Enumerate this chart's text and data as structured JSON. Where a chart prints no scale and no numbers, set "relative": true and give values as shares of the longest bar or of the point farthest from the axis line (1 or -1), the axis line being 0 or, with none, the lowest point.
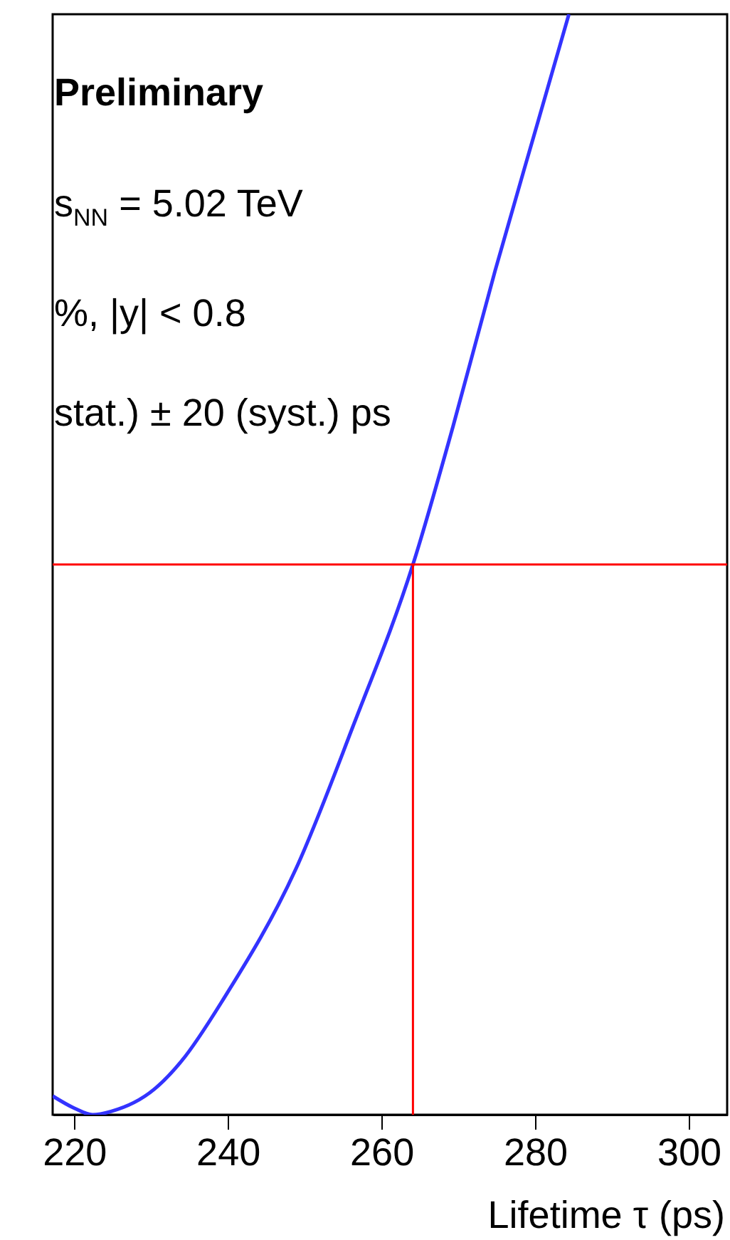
{
  "chart_data": {
    "type": "line",
    "relative": true,
    "xlabel": "Lifetime τ (ps)",
    "x": [
      217.2,
      220,
      222.4,
      224.8,
      230.4,
      234,
      239.6,
      248.9,
      256.3,
      264.1,
      269.3,
      274.8,
      280.4,
      284.4
    ],
    "series": [
      {
        "color": "#3333ff",
        "values": [
          0.017,
          0.006,
          0,
          0.003,
          0.023,
          0.049,
          0.107,
          0.224,
          0.353,
          0.5,
          0.625,
          0.767,
          0.903,
          1
        ]
      }
    ],
    "xlim": [
      217.2,
      305
    ],
    "xticks": [
      220,
      240,
      260,
      280,
      300
    ],
    "ref_lines": [
      {
        "axis": "y",
        "value": 0.5,
        "color": "#ff0000"
      },
      {
        "axis": "x",
        "value": 264.1,
        "color": "#ff0000"
      }
    ],
    "annotations": [
      "Preliminary",
      "s$_{NN}$ = 5.02 TeV",
      "%, |y| < 0.8",
      "stat.) ± 20 (syst.) ps"
    ]
  }
}
